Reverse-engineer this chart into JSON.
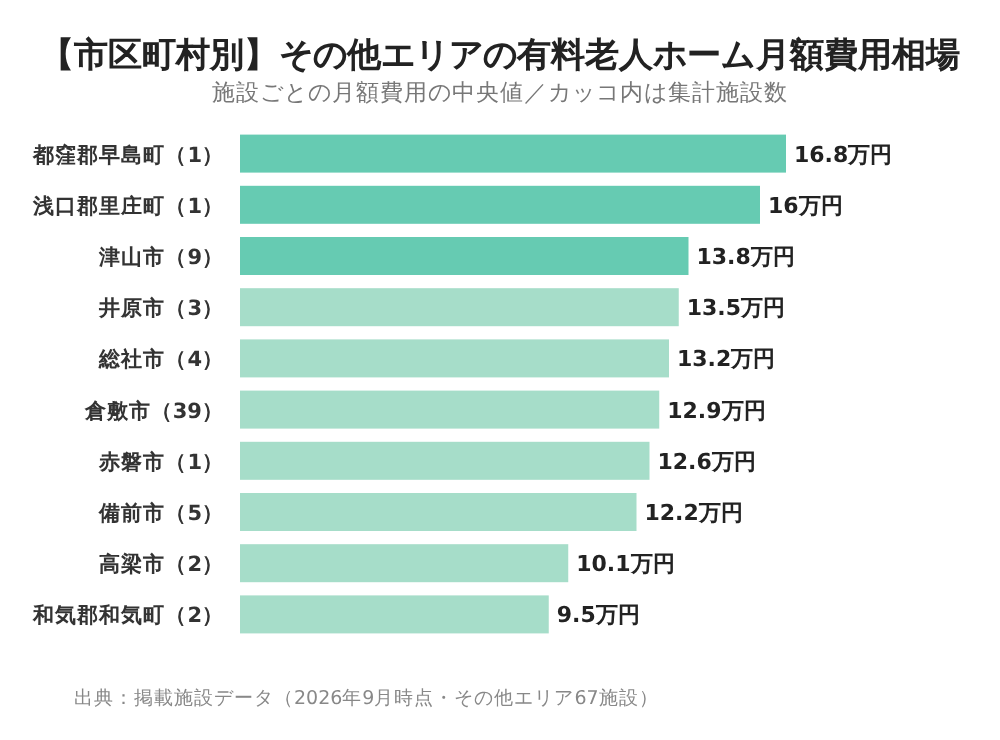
{
  "chart_data": {
    "type": "bar",
    "orientation": "horizontal",
    "title": "【市区町村別】その他エリアの有料老人ホーム月額費用相場",
    "subtitle": "施設ごとの月額費用の中央値／カッコ内は集計施設数",
    "categories": [
      "都窪郡早島町（1）",
      "浅口郡里庄町（1）",
      "津山市（9）",
      "井原市（3）",
      "総社市（4）",
      "倉敷市（39）",
      "赤磐市（1）",
      "備前市（5）",
      "高梁市（2）",
      "和気郡和気町（2）"
    ],
    "values": [
      16.8,
      16,
      13.8,
      13.5,
      13.2,
      12.9,
      12.6,
      12.2,
      10.1,
      9.5
    ],
    "colors": [
      "#66cbb2",
      "#66cbb2",
      "#66cbb2",
      "#a6ddc9",
      "#a6ddc9",
      "#a6ddc9",
      "#a6ddc9",
      "#a6ddc9",
      "#a6ddc9",
      "#a6ddc9"
    ],
    "value_labels": [
      "16.8万円",
      "16万円",
      "13.8万円",
      "13.5万円",
      "13.2万円",
      "12.9万円",
      "12.6万円",
      "12.2万円",
      "10.1万円",
      "9.5万円"
    ],
    "annotations": [
      "出典：掲載施設データ（2026年9月時点・その他エリア67施設）"
    ]
  }
}
